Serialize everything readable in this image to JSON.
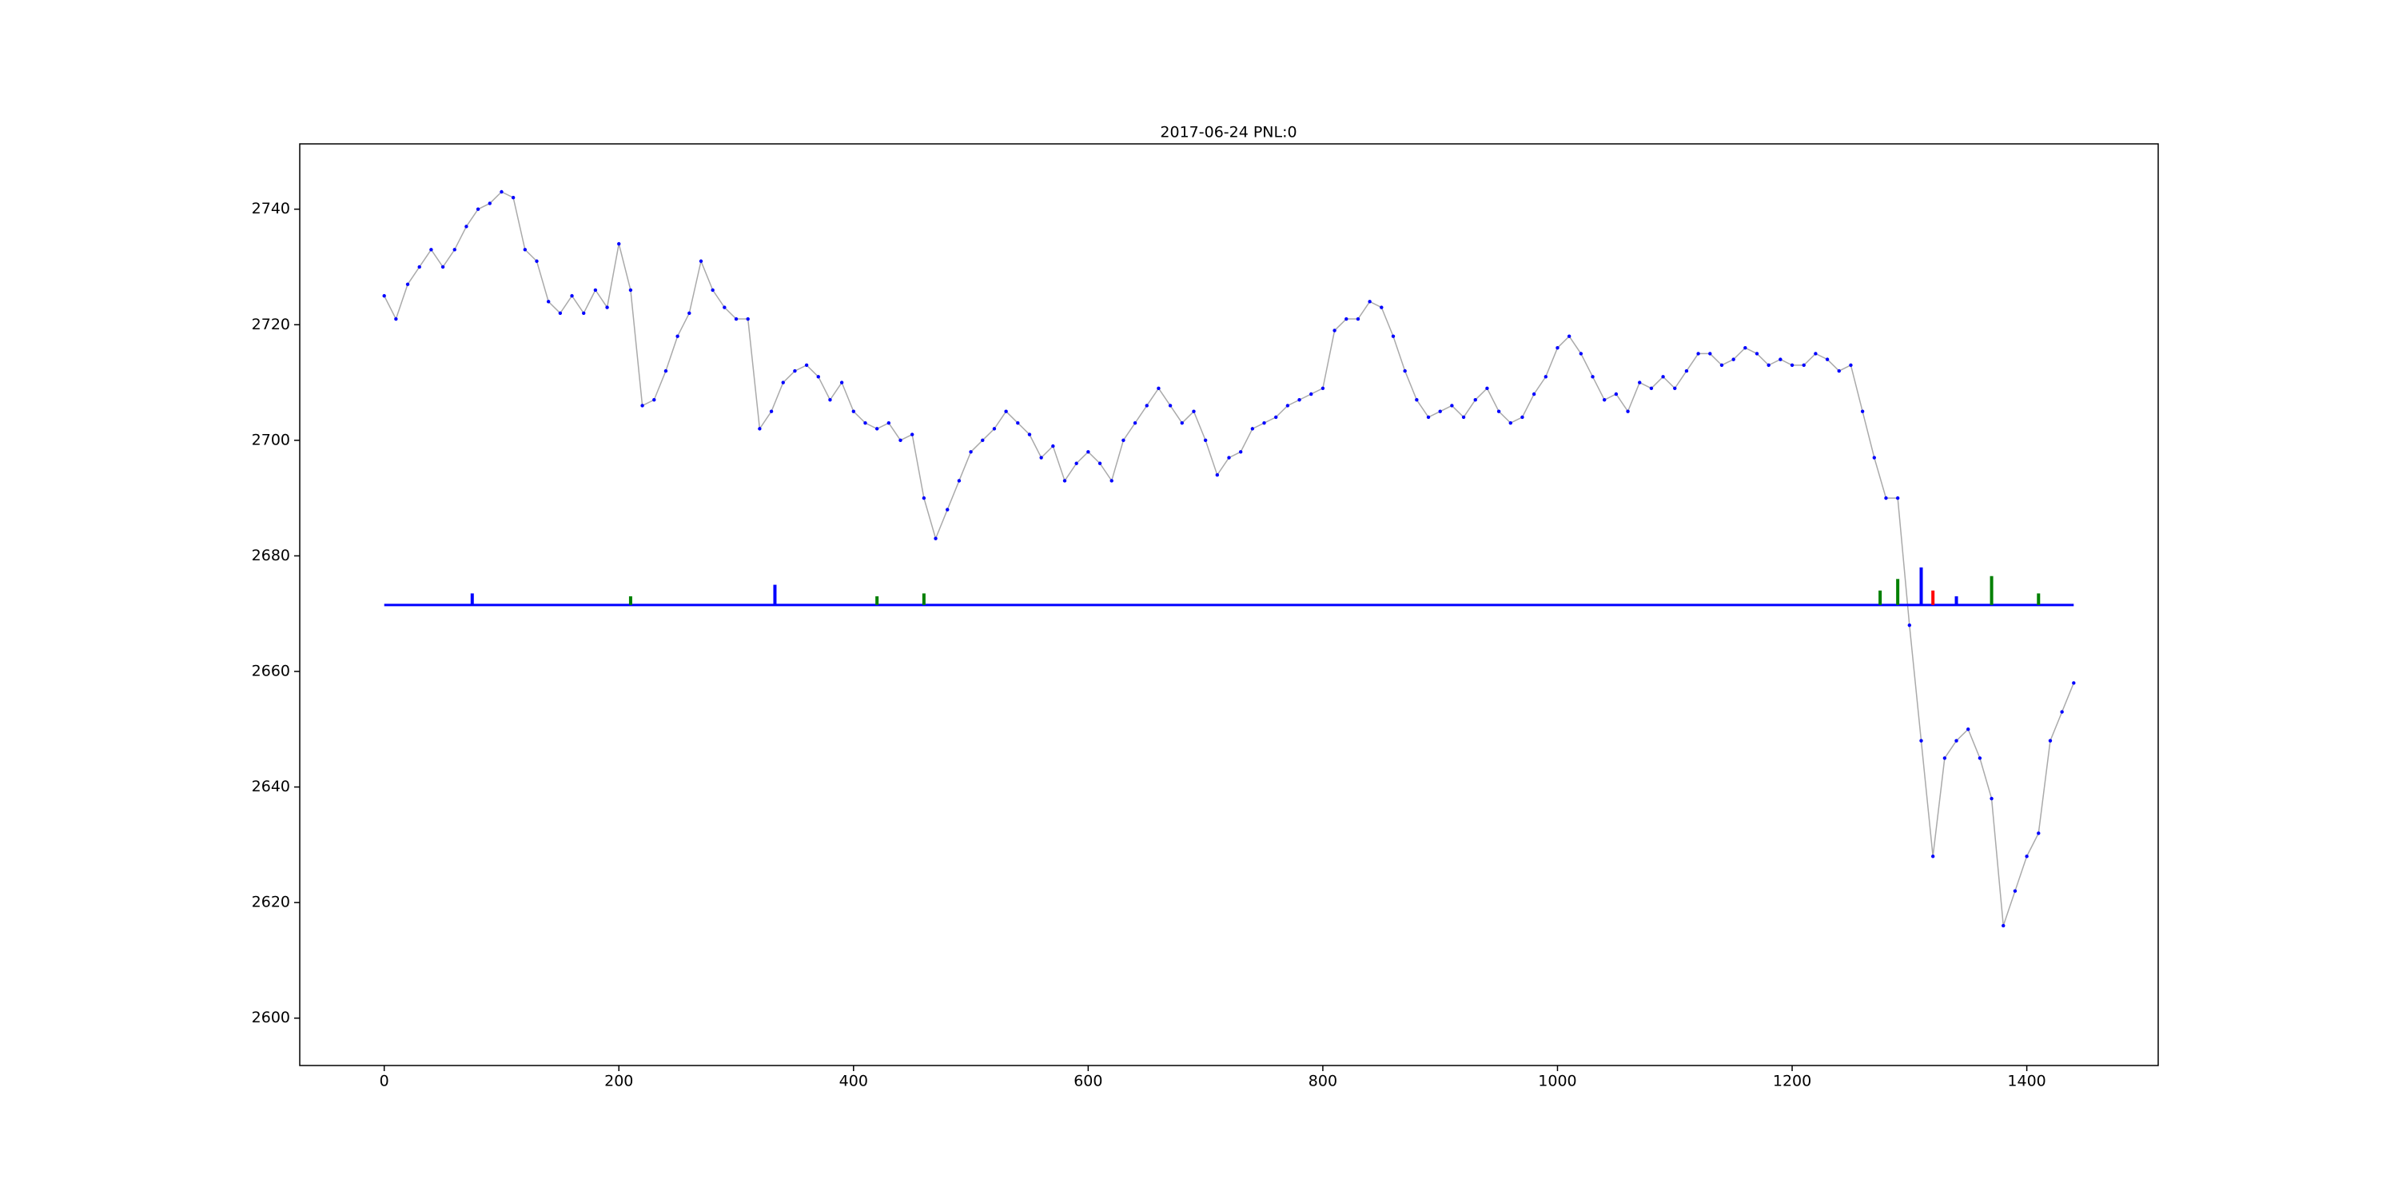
{
  "chart_data": {
    "type": "line",
    "title": "2017-06-24 PNL:0",
    "xlim": [
      -72,
      1512
    ],
    "ylim": [
      2591.8,
      2751.3
    ],
    "xticks": [
      0,
      200,
      400,
      600,
      800,
      1000,
      1200,
      1400
    ],
    "yticks": [
      2600,
      2620,
      2640,
      2660,
      2680,
      2700,
      2720,
      2740
    ],
    "series": [
      {
        "type": "line",
        "color": "#aaaaaa",
        "marker_color": "#0000ff",
        "x": [
          0,
          10,
          20,
          30,
          40,
          50,
          60,
          70,
          80,
          90,
          100,
          110,
          120,
          130,
          140,
          150,
          160,
          170,
          180,
          190,
          200,
          210,
          220,
          230,
          240,
          250,
          260,
          270,
          280,
          290,
          300,
          310,
          320,
          330,
          340,
          350,
          360,
          370,
          380,
          390,
          400,
          410,
          420,
          430,
          440,
          450,
          460,
          470,
          480,
          490,
          500,
          510,
          520,
          530,
          540,
          550,
          560,
          570,
          580,
          590,
          600,
          610,
          620,
          630,
          640,
          650,
          660,
          670,
          680,
          690,
          700,
          710,
          720,
          730,
          740,
          750,
          760,
          770,
          780,
          790,
          800,
          810,
          820,
          830,
          840,
          850,
          860,
          870,
          880,
          890,
          900,
          910,
          920,
          930,
          940,
          950,
          960,
          970,
          980,
          990,
          1000,
          1010,
          1020,
          1030,
          1040,
          1050,
          1060,
          1070,
          1080,
          1090,
          1100,
          1110,
          1120,
          1130,
          1140,
          1150,
          1160,
          1170,
          1180,
          1190,
          1200,
          1210,
          1220,
          1230,
          1240,
          1250,
          1260,
          1270,
          1280,
          1290,
          1300,
          1310,
          1320,
          1330,
          1340,
          1350,
          1360,
          1370,
          1380,
          1390,
          1400,
          1410,
          1420,
          1430,
          1440
        ],
        "values": [
          2725,
          2721,
          2727,
          2730,
          2733,
          2730,
          2733,
          2737,
          2740,
          2741,
          2743,
          2742,
          2733,
          2731,
          2724,
          2722,
          2725,
          2722,
          2726,
          2723,
          2734,
          2726,
          2706,
          2707,
          2712,
          2718,
          2722,
          2731,
          2726,
          2723,
          2721,
          2721,
          2702,
          2705,
          2710,
          2712,
          2713,
          2711,
          2707,
          2710,
          2705,
          2703,
          2702,
          2703,
          2700,
          2701,
          2690,
          2683,
          2688,
          2693,
          2698,
          2700,
          2702,
          2705,
          2703,
          2701,
          2697,
          2699,
          2693,
          2696,
          2698,
          2696,
          2693,
          2700,
          2703,
          2706,
          2709,
          2706,
          2703,
          2705,
          2700,
          2694,
          2697,
          2698,
          2702,
          2703,
          2704,
          2706,
          2707,
          2708,
          2709,
          2719,
          2721,
          2721,
          2724,
          2723,
          2718,
          2712,
          2707,
          2704,
          2705,
          2706,
          2704,
          2707,
          2709,
          2705,
          2703,
          2704,
          2708,
          2711,
          2716,
          2718,
          2715,
          2711,
          2707,
          2708,
          2705,
          2710,
          2709,
          2711,
          2709,
          2712,
          2715,
          2715,
          2713,
          2714,
          2716,
          2715,
          2713,
          2714,
          2713,
          2713,
          2715,
          2714,
          2712,
          2713,
          2705,
          2697,
          2690,
          2690,
          2668,
          2648,
          2628,
          2645,
          2648,
          2650,
          2645,
          2638,
          2616,
          2622,
          2628,
          2632,
          2648,
          2653,
          2658
        ]
      },
      {
        "type": "bar",
        "base": 2671.5,
        "x": [
          75,
          210,
          333,
          420,
          460,
          1275,
          1290,
          1310,
          1320,
          1340,
          1370,
          1410
        ],
        "values": [
          2673.5,
          2673,
          2675,
          2673,
          2673.5,
          2674,
          2676,
          2678,
          2674,
          2673,
          2676.5,
          2673.5
        ],
        "colors": [
          "#0000ff",
          "#008000",
          "#0000ff",
          "#008000",
          "#008000",
          "#008000",
          "#008000",
          "#0000ff",
          "#ff0000",
          "#0000ff",
          "#008000",
          "#008000"
        ]
      }
    ]
  }
}
